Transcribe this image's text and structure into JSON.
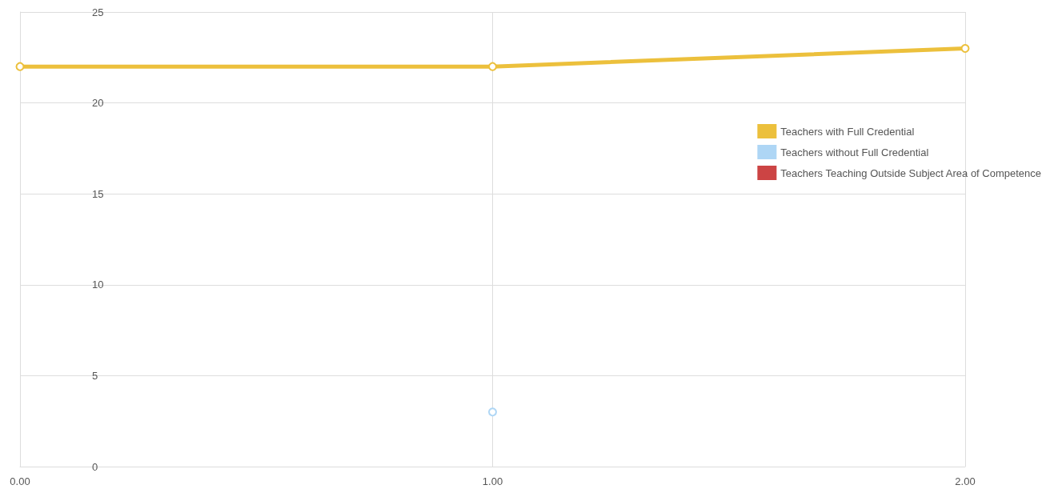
{
  "chart_data": {
    "type": "line",
    "x": [
      0,
      1,
      2
    ],
    "series": [
      {
        "name": "Teachers with Full Credential",
        "color": "#ecc03c",
        "values": [
          22,
          22,
          23
        ]
      },
      {
        "name": "Teachers without Full Credential",
        "color": "#aed6f5",
        "values": [
          null,
          3,
          null
        ]
      },
      {
        "name": "Teachers Teaching Outside Subject Area of Competence",
        "color": "#cc4444",
        "values": [
          null,
          null,
          null
        ]
      }
    ],
    "xlim": [
      0,
      2
    ],
    "xticks": [
      {
        "value": 0,
        "label": "0.00"
      },
      {
        "value": 1,
        "label": "1.00"
      },
      {
        "value": 2,
        "label": "2.00"
      }
    ],
    "ylim": [
      0,
      25
    ],
    "yticks": [
      0,
      5,
      10,
      15,
      20,
      25
    ],
    "grid": true,
    "legend": "top right",
    "marker": "circle",
    "line_style": "solid"
  }
}
